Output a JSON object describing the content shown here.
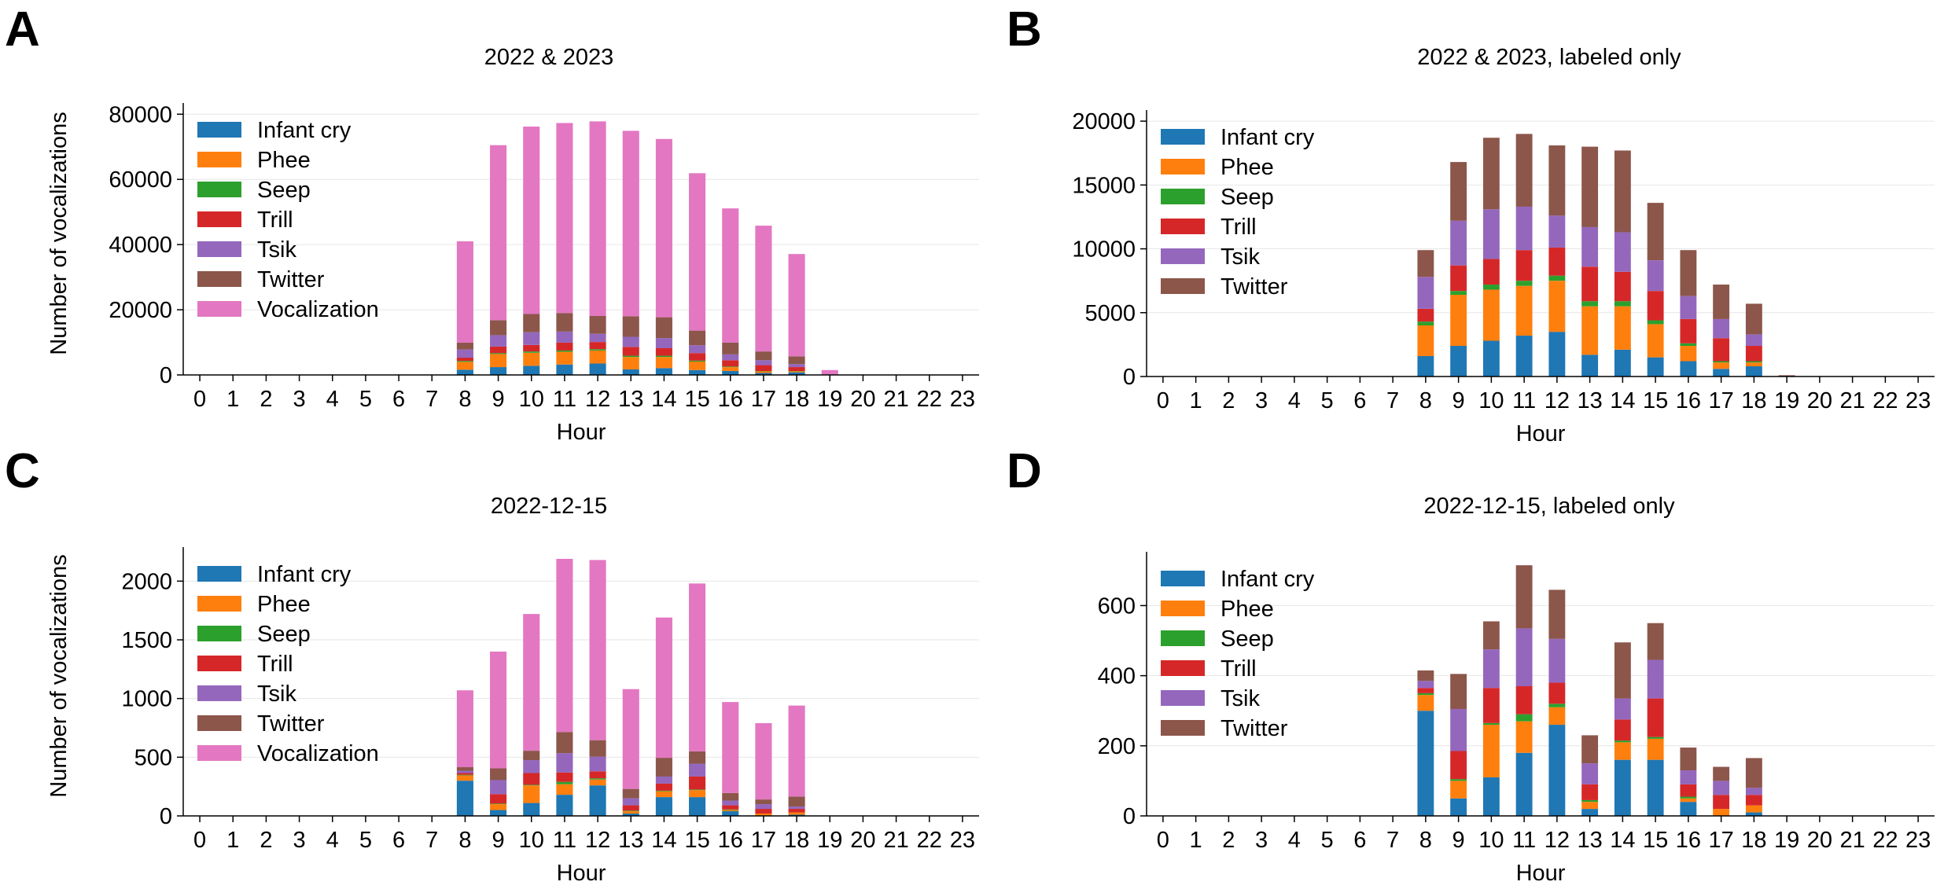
{
  "colors": {
    "Infant cry": "#1f77b4",
    "Phee": "#ff7f0e",
    "Seep": "#2ca02c",
    "Trill": "#d62728",
    "Tsik": "#9467bd",
    "Twitter": "#8c564b",
    "Vocalization": "#e377c2"
  },
  "chart_data": [
    {
      "type": "bar",
      "stacked": true,
      "panel": "A",
      "title": "2022 & 2023",
      "xlabel": "Hour",
      "ylabel": "Number of vocalizations",
      "ylim": [
        0,
        82000
      ],
      "yticks": [
        0,
        20000,
        40000,
        60000,
        80000
      ],
      "grid": true,
      "legend": "top-left",
      "categories": [
        "0",
        "1",
        "2",
        "3",
        "4",
        "5",
        "6",
        "7",
        "8",
        "9",
        "10",
        "11",
        "12",
        "13",
        "14",
        "15",
        "16",
        "17",
        "18",
        "19",
        "20",
        "21",
        "22",
        "23"
      ],
      "series": [
        {
          "name": "Infant cry",
          "values": [
            0,
            0,
            0,
            0,
            0,
            0,
            0,
            0,
            1600,
            2400,
            2800,
            3200,
            3500,
            1700,
            2100,
            1500,
            1200,
            600,
            800,
            0,
            0,
            0,
            0,
            0
          ]
        },
        {
          "name": "Phee",
          "values": [
            0,
            0,
            0,
            0,
            0,
            0,
            0,
            0,
            2400,
            4000,
            4000,
            3900,
            4000,
            3800,
            3400,
            2600,
            1200,
            500,
            300,
            0,
            0,
            0,
            0,
            0
          ]
        },
        {
          "name": "Seep",
          "values": [
            0,
            0,
            0,
            0,
            0,
            0,
            0,
            0,
            300,
            300,
            400,
            400,
            400,
            400,
            400,
            300,
            200,
            100,
            100,
            0,
            0,
            0,
            0,
            0
          ]
        },
        {
          "name": "Trill",
          "values": [
            0,
            0,
            0,
            0,
            0,
            0,
            0,
            0,
            1000,
            2000,
            2000,
            2400,
            2200,
            2700,
            2300,
            2300,
            1900,
            1800,
            1200,
            0,
            0,
            0,
            0,
            0
          ]
        },
        {
          "name": "Tsik",
          "values": [
            0,
            0,
            0,
            0,
            0,
            0,
            0,
            0,
            2500,
            3500,
            3900,
            3400,
            2500,
            3100,
            3100,
            2400,
            1800,
            1500,
            900,
            0,
            0,
            0,
            0,
            0
          ]
        },
        {
          "name": "Twitter",
          "values": [
            0,
            0,
            0,
            0,
            0,
            0,
            0,
            0,
            2100,
            4600,
            5600,
            5700,
            5500,
            6300,
            6400,
            4500,
            3600,
            2700,
            2400,
            100,
            0,
            0,
            0,
            0
          ]
        },
        {
          "name": "Vocalization",
          "values": [
            0,
            0,
            0,
            0,
            0,
            0,
            0,
            0,
            31100,
            53700,
            57500,
            58300,
            59700,
            56900,
            54700,
            48300,
            41200,
            38600,
            31400,
            1400,
            0,
            0,
            0,
            0
          ]
        }
      ]
    },
    {
      "type": "bar",
      "stacked": true,
      "panel": "B",
      "title": "2022 & 2023, labeled only",
      "xlabel": "Hour",
      "ylabel": "",
      "ylim": [
        0,
        20500
      ],
      "yticks": [
        0,
        5000,
        10000,
        15000,
        20000
      ],
      "grid": true,
      "legend": "top-left",
      "categories": [
        "0",
        "1",
        "2",
        "3",
        "4",
        "5",
        "6",
        "7",
        "8",
        "9",
        "10",
        "11",
        "12",
        "13",
        "14",
        "15",
        "16",
        "17",
        "18",
        "19",
        "20",
        "21",
        "22",
        "23"
      ],
      "series": [
        {
          "name": "Infant cry",
          "values": [
            0,
            0,
            0,
            0,
            0,
            0,
            0,
            0,
            1600,
            2400,
            2800,
            3200,
            3500,
            1700,
            2100,
            1500,
            1200,
            600,
            800,
            0,
            0,
            0,
            0,
            0
          ]
        },
        {
          "name": "Phee",
          "values": [
            0,
            0,
            0,
            0,
            0,
            0,
            0,
            0,
            2400,
            4000,
            4000,
            3900,
            4000,
            3800,
            3400,
            2600,
            1200,
            500,
            300,
            0,
            0,
            0,
            0,
            0
          ]
        },
        {
          "name": "Seep",
          "values": [
            0,
            0,
            0,
            0,
            0,
            0,
            0,
            0,
            300,
            300,
            400,
            400,
            400,
            400,
            400,
            300,
            200,
            100,
            100,
            0,
            0,
            0,
            0,
            0
          ]
        },
        {
          "name": "Trill",
          "values": [
            0,
            0,
            0,
            0,
            0,
            0,
            0,
            0,
            1000,
            2000,
            2000,
            2400,
            2200,
            2700,
            2300,
            2300,
            1900,
            1800,
            1200,
            0,
            0,
            0,
            0,
            0
          ]
        },
        {
          "name": "Tsik",
          "values": [
            0,
            0,
            0,
            0,
            0,
            0,
            0,
            0,
            2500,
            3500,
            3900,
            3400,
            2500,
            3100,
            3100,
            2400,
            1800,
            1500,
            900,
            0,
            0,
            0,
            0,
            0
          ]
        },
        {
          "name": "Twitter",
          "values": [
            0,
            0,
            0,
            0,
            0,
            0,
            0,
            0,
            2100,
            4600,
            5600,
            5700,
            5500,
            6300,
            6400,
            4500,
            3600,
            2700,
            2400,
            100,
            0,
            0,
            0,
            0
          ]
        }
      ]
    },
    {
      "type": "bar",
      "stacked": true,
      "panel": "C",
      "title": "2022-12-15",
      "xlabel": "Hour",
      "ylabel": "Number of vocalizations",
      "ylim": [
        0,
        2250
      ],
      "yticks": [
        0,
        500,
        1000,
        1500,
        2000
      ],
      "grid": true,
      "legend": "top-left",
      "categories": [
        "0",
        "1",
        "2",
        "3",
        "4",
        "5",
        "6",
        "7",
        "8",
        "9",
        "10",
        "11",
        "12",
        "13",
        "14",
        "15",
        "16",
        "17",
        "18",
        "19",
        "20",
        "21",
        "22",
        "23"
      ],
      "series": [
        {
          "name": "Infant cry",
          "values": [
            0,
            0,
            0,
            0,
            0,
            0,
            0,
            0,
            300,
            50,
            110,
            180,
            260,
            20,
            160,
            160,
            40,
            0,
            10,
            0,
            0,
            0,
            0,
            0
          ]
        },
        {
          "name": "Phee",
          "values": [
            0,
            0,
            0,
            0,
            0,
            0,
            0,
            0,
            45,
            50,
            150,
            90,
            50,
            20,
            50,
            60,
            10,
            20,
            20,
            0,
            0,
            0,
            0,
            0
          ]
        },
        {
          "name": "Seep",
          "values": [
            0,
            0,
            0,
            0,
            0,
            0,
            0,
            0,
            5,
            5,
            5,
            20,
            10,
            5,
            5,
            5,
            5,
            0,
            0,
            0,
            0,
            0,
            0,
            0
          ]
        },
        {
          "name": "Trill",
          "values": [
            0,
            0,
            0,
            0,
            0,
            0,
            0,
            0,
            15,
            80,
            100,
            80,
            60,
            45,
            60,
            110,
            35,
            40,
            30,
            0,
            0,
            0,
            0,
            0
          ]
        },
        {
          "name": "Tsik",
          "values": [
            0,
            0,
            0,
            0,
            0,
            0,
            0,
            0,
            20,
            120,
            110,
            165,
            125,
            60,
            60,
            110,
            40,
            40,
            20,
            0,
            0,
            0,
            0,
            0
          ]
        },
        {
          "name": "Twitter",
          "values": [
            0,
            0,
            0,
            0,
            0,
            0,
            0,
            0,
            30,
            100,
            80,
            180,
            140,
            80,
            160,
            105,
            65,
            40,
            85,
            0,
            0,
            0,
            0,
            0
          ]
        },
        {
          "name": "Vocalization",
          "values": [
            0,
            0,
            0,
            0,
            0,
            0,
            0,
            0,
            655,
            995,
            1165,
            1475,
            1535,
            850,
            1195,
            1430,
            775,
            650,
            775,
            0,
            0,
            0,
            0,
            0
          ]
        }
      ]
    },
    {
      "type": "bar",
      "stacked": true,
      "panel": "D",
      "title": "2022-12-15, labeled only",
      "xlabel": "Hour",
      "ylabel": "",
      "ylim": [
        0,
        740
      ],
      "yticks": [
        0,
        200,
        400,
        600
      ],
      "grid": true,
      "legend": "top-left",
      "categories": [
        "0",
        "1",
        "2",
        "3",
        "4",
        "5",
        "6",
        "7",
        "8",
        "9",
        "10",
        "11",
        "12",
        "13",
        "14",
        "15",
        "16",
        "17",
        "18",
        "19",
        "20",
        "21",
        "22",
        "23"
      ],
      "series": [
        {
          "name": "Infant cry",
          "values": [
            0,
            0,
            0,
            0,
            0,
            0,
            0,
            0,
            300,
            50,
            110,
            180,
            260,
            20,
            160,
            160,
            40,
            0,
            10,
            0,
            0,
            0,
            0,
            0
          ]
        },
        {
          "name": "Phee",
          "values": [
            0,
            0,
            0,
            0,
            0,
            0,
            0,
            0,
            45,
            50,
            150,
            90,
            50,
            20,
            50,
            60,
            10,
            20,
            20,
            0,
            0,
            0,
            0,
            0
          ]
        },
        {
          "name": "Seep",
          "values": [
            0,
            0,
            0,
            0,
            0,
            0,
            0,
            0,
            5,
            5,
            5,
            20,
            10,
            5,
            5,
            5,
            5,
            0,
            0,
            0,
            0,
            0,
            0,
            0
          ]
        },
        {
          "name": "Trill",
          "values": [
            0,
            0,
            0,
            0,
            0,
            0,
            0,
            0,
            15,
            80,
            100,
            80,
            60,
            45,
            60,
            110,
            35,
            40,
            30,
            0,
            0,
            0,
            0,
            0
          ]
        },
        {
          "name": "Tsik",
          "values": [
            0,
            0,
            0,
            0,
            0,
            0,
            0,
            0,
            20,
            120,
            110,
            165,
            125,
            60,
            60,
            110,
            40,
            40,
            20,
            0,
            0,
            0,
            0,
            0
          ]
        },
        {
          "name": "Twitter",
          "values": [
            0,
            0,
            0,
            0,
            0,
            0,
            0,
            0,
            30,
            100,
            80,
            180,
            140,
            80,
            160,
            105,
            65,
            40,
            85,
            0,
            0,
            0,
            0,
            0
          ]
        }
      ]
    }
  ]
}
